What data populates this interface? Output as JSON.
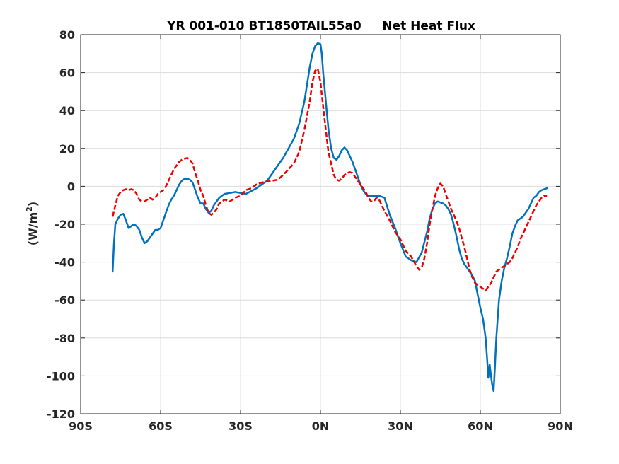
{
  "chart_data": {
    "type": "line",
    "title": "YR 001-010 BT1850TAIL55a0     Net Heat Flux",
    "ylabel_main": "(W/m",
    "ylabel_sup": "2",
    "ylabel_close": ")",
    "xlim": [
      -90,
      90
    ],
    "ylim": [
      -120,
      80
    ],
    "xticks": [
      -90,
      -60,
      -30,
      0,
      30,
      60,
      90
    ],
    "xticklabels": [
      "90S",
      "60S",
      "30S",
      "0N",
      "30N",
      "60N",
      "90N"
    ],
    "yticks": [
      80,
      60,
      40,
      20,
      0,
      -20,
      -40,
      -60,
      -80,
      -100,
      -120
    ],
    "yticklabels": [
      "80",
      "60",
      "40",
      "20",
      "0",
      "-20",
      "-40",
      "-60",
      "-80",
      "-100",
      "-120"
    ],
    "grid": true,
    "series": [
      {
        "color": "#0072BD",
        "style": "solid",
        "x": [
          -78,
          -77.5,
          -77,
          -76,
          -75,
          -74,
          -73,
          -72,
          -71,
          -70,
          -69,
          -68,
          -67,
          -66,
          -65,
          -64,
          -63,
          -62,
          -61,
          -60,
          -59,
          -58,
          -57,
          -56,
          -55,
          -54,
          -53,
          -52,
          -51,
          -50,
          -49,
          -48,
          -47,
          -46,
          -45,
          -44,
          -43,
          -42,
          -41,
          -40,
          -38,
          -36,
          -34,
          -32,
          -30,
          -28,
          -26,
          -24,
          -22,
          -20,
          -18,
          -16,
          -14,
          -12,
          -10,
          -8,
          -6,
          -4,
          -3,
          -2,
          -1,
          0,
          0.5,
          1,
          2,
          3,
          4,
          5,
          6,
          7,
          8,
          9,
          10,
          11,
          12,
          13,
          14,
          15,
          16,
          17,
          18,
          19,
          20,
          22,
          24,
          26,
          28,
          30,
          32,
          34,
          36,
          38,
          40,
          41,
          42,
          43,
          44,
          45,
          46,
          47,
          48,
          49,
          50,
          51,
          52,
          53,
          54,
          55,
          56,
          57,
          58,
          59,
          60,
          61,
          62,
          62.5,
          63,
          63.5,
          64,
          64.5,
          65,
          65.5,
          66,
          66.5,
          67,
          68,
          69,
          70,
          71,
          72,
          73,
          74,
          75,
          76,
          77,
          78,
          79,
          80,
          81,
          82,
          83,
          84,
          85
        ],
        "y": [
          -45,
          -30,
          -20,
          -17,
          -15,
          -14.5,
          -18,
          -22,
          -21,
          -20,
          -21,
          -23,
          -27,
          -30,
          -29,
          -27,
          -25,
          -23,
          -23,
          -22,
          -18,
          -14,
          -10,
          -7,
          -5,
          -2,
          1,
          3,
          4,
          4,
          3.5,
          2,
          -2,
          -6,
          -9,
          -9,
          -12,
          -14,
          -13,
          -10,
          -6,
          -4,
          -3.5,
          -3,
          -3.5,
          -4,
          -2.5,
          -1,
          1,
          3,
          7,
          11,
          15,
          20,
          25,
          33,
          45,
          63,
          70,
          74,
          75.5,
          75,
          70,
          60,
          45,
          30,
          20,
          15,
          14,
          16,
          19,
          20.5,
          19,
          16,
          13,
          9,
          5,
          1,
          -2,
          -4,
          -5,
          -5,
          -5,
          -5,
          -6,
          -15,
          -22,
          -30,
          -37,
          -39,
          -40,
          -35,
          -24,
          -17,
          -12,
          -9,
          -8,
          -8.5,
          -9,
          -10,
          -12,
          -15,
          -20,
          -26,
          -33,
          -38,
          -41,
          -43,
          -45,
          -47,
          -50,
          -57,
          -64,
          -70,
          -80,
          -90,
          -101,
          -94,
          -100,
          -105,
          -108,
          -95,
          -80,
          -70,
          -60,
          -50,
          -43,
          -38,
          -32,
          -25,
          -21,
          -18,
          -17,
          -16,
          -14,
          -12,
          -9,
          -6,
          -5,
          -3,
          -2,
          -1.5,
          -1
        ]
      },
      {
        "color": "#EE0000",
        "style": "dashed",
        "x": [
          -78,
          -77,
          -76,
          -75,
          -74,
          -73,
          -72,
          -71,
          -70,
          -69,
          -68,
          -67,
          -66,
          -65,
          -64,
          -63,
          -62,
          -61,
          -60,
          -59,
          -58,
          -57,
          -56,
          -55,
          -54,
          -53,
          -52,
          -51,
          -50,
          -49,
          -48,
          -47,
          -46,
          -45,
          -44,
          -43,
          -42,
          -41,
          -40,
          -39,
          -38,
          -36,
          -34,
          -32,
          -30,
          -28,
          -26,
          -24,
          -22,
          -20,
          -18,
          -16,
          -14,
          -12,
          -10,
          -8,
          -6,
          -4,
          -3,
          -2,
          -1,
          0,
          1,
          2,
          3,
          4,
          5,
          6,
          7,
          8,
          9,
          10,
          11,
          12,
          13,
          14,
          15,
          16,
          17,
          18,
          19,
          20,
          21,
          22,
          23,
          24,
          26,
          28,
          30,
          32,
          34,
          36,
          37,
          38,
          39,
          40,
          41,
          42,
          43,
          44,
          45,
          46,
          47,
          48,
          49,
          50,
          51,
          52,
          53,
          54,
          55,
          56,
          57,
          58,
          59,
          60,
          61,
          62,
          63,
          64,
          65,
          66,
          67,
          68,
          69,
          70,
          71,
          72,
          73,
          74,
          75,
          76,
          77,
          78,
          79,
          80,
          81,
          82,
          83,
          84,
          85
        ],
        "y": [
          -16,
          -10,
          -5,
          -3,
          -2,
          -1.5,
          -2,
          -1.5,
          -2,
          -4,
          -7,
          -8,
          -8,
          -7,
          -6,
          -7,
          -6,
          -4,
          -3,
          -2,
          0,
          3,
          6,
          9,
          11,
          13,
          14,
          14.5,
          15,
          14,
          12,
          7,
          3,
          -2,
          -5,
          -10,
          -14,
          -15,
          -14,
          -12,
          -9,
          -7,
          -8,
          -6,
          -5,
          -2,
          -1,
          1,
          2,
          2.5,
          3,
          3.5,
          6,
          9,
          12,
          18,
          30,
          45,
          55,
          61,
          62,
          55,
          42,
          30,
          18,
          12,
          6,
          3.5,
          3,
          4,
          6,
          7,
          7.5,
          7,
          5,
          3,
          1,
          -1,
          -3,
          -6,
          -8,
          -8,
          -6,
          -7,
          -10,
          -13,
          -18,
          -24,
          -28,
          -34,
          -37,
          -42,
          -44,
          -43,
          -38,
          -30,
          -20,
          -12,
          -5,
          -1,
          1.5,
          0,
          -4,
          -8,
          -12,
          -15,
          -18,
          -22,
          -27,
          -32,
          -38,
          -44,
          -48,
          -51,
          -52,
          -53,
          -54,
          -55,
          -53,
          -51,
          -48,
          -45,
          -44,
          -43,
          -42,
          -41,
          -40,
          -38,
          -35,
          -32,
          -28,
          -25,
          -22,
          -19,
          -16,
          -13,
          -10,
          -8,
          -6,
          -5,
          -5
        ]
      }
    ]
  }
}
